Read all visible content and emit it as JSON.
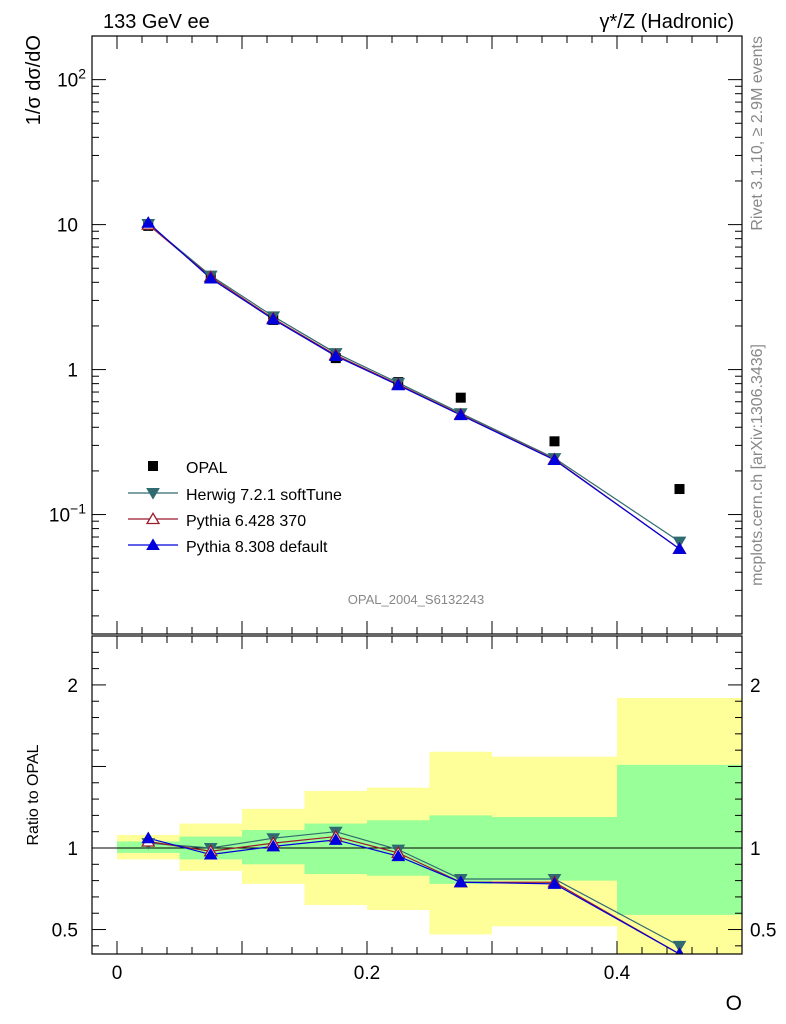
{
  "header": {
    "left": "133 GeV ee",
    "right": "γ*/Z (Hadronic)"
  },
  "side_text": {
    "rivet": "Rivet 3.1.10, ≥ 2.9M events",
    "mcplots": "mcplots.cern.ch [arXiv:1306.3436]"
  },
  "watermark": "OPAL_2004_S6132243",
  "colors": {
    "opal": "#000000",
    "herwig": "#2f6b70",
    "pythia6": "#9b1b2b",
    "pythia8": "#0000dd",
    "band_inner": "#99ff99",
    "band_outer": "#ffff99"
  },
  "chart_data": [
    {
      "type": "line",
      "panel": "main",
      "ylabel": "1/σ dσ/dO",
      "yscale": "log",
      "xlim": [
        -0.02,
        0.5
      ],
      "ylim": [
        0.015,
        200
      ],
      "ytick_labels": [
        "10^-1",
        "1",
        "10",
        "10^2"
      ],
      "grid": false,
      "legend": "lower-left",
      "x": [
        0.025,
        0.075,
        0.125,
        0.175,
        0.225,
        0.275,
        0.35,
        0.45
      ],
      "series": [
        {
          "name": "OPAL",
          "marker": "square",
          "values": [
            9.8,
            4.4,
            2.2,
            1.2,
            0.82,
            0.64,
            0.32,
            0.15
          ]
        },
        {
          "name": "Herwig 7.2.1 softTune",
          "marker": "triangle-down",
          "values": [
            10.1,
            4.45,
            2.33,
            1.3,
            0.81,
            0.5,
            0.245,
            0.065
          ]
        },
        {
          "name": "Pythia 6.428 370",
          "marker": "triangle-up-open",
          "values": [
            10.0,
            4.35,
            2.25,
            1.26,
            0.79,
            0.49,
            0.24,
            0.058
          ]
        },
        {
          "name": "Pythia 8.308 default",
          "marker": "triangle-up",
          "values": [
            10.3,
            4.25,
            2.22,
            1.24,
            0.78,
            0.485,
            0.238,
            0.058
          ]
        }
      ]
    },
    {
      "type": "line",
      "panel": "ratio",
      "ylabel": "Ratio to OPAL",
      "xlabel": "O",
      "xlim": [
        -0.02,
        0.5
      ],
      "ylim": [
        0.35,
        2.3
      ],
      "xtick_labels": [
        "0",
        "0.2",
        "0.4"
      ],
      "ytick_labels": [
        "0.5",
        "1",
        "2"
      ],
      "x": [
        0.025,
        0.075,
        0.125,
        0.175,
        0.225,
        0.275,
        0.35,
        0.45
      ],
      "bin_edges": [
        0.0,
        0.05,
        0.1,
        0.15,
        0.2,
        0.25,
        0.3,
        0.4,
        0.5
      ],
      "band_inner": [
        [
          0.97,
          1.04
        ],
        [
          0.93,
          1.07
        ],
        [
          0.9,
          1.11
        ],
        [
          0.84,
          1.15
        ],
        [
          0.83,
          1.17
        ],
        [
          0.78,
          1.2
        ],
        [
          0.8,
          1.19
        ],
        [
          0.59,
          1.51
        ]
      ],
      "band_outer": [
        [
          0.93,
          1.08
        ],
        [
          0.86,
          1.15
        ],
        [
          0.78,
          1.24
        ],
        [
          0.65,
          1.35
        ],
        [
          0.62,
          1.37
        ],
        [
          0.47,
          1.59
        ],
        [
          0.52,
          1.56
        ],
        [
          0.3,
          1.92
        ]
      ],
      "series": [
        {
          "name": "Herwig 7.2.1 softTune",
          "values": [
            1.03,
            1.0,
            1.06,
            1.1,
            0.99,
            0.81,
            0.81,
            0.4
          ]
        },
        {
          "name": "Pythia 6.428 370",
          "values": [
            1.04,
            0.98,
            1.03,
            1.07,
            0.97,
            0.79,
            0.79,
            0.35
          ]
        },
        {
          "name": "Pythia 8.308 default",
          "values": [
            1.06,
            0.96,
            1.01,
            1.05,
            0.95,
            0.79,
            0.78,
            0.35
          ]
        }
      ]
    }
  ]
}
